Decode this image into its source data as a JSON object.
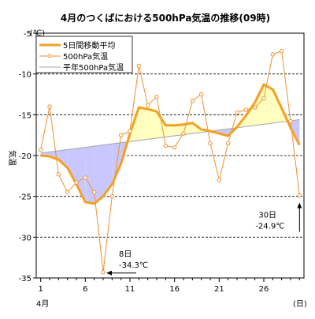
{
  "chart_data": {
    "type": "line",
    "title": "4月のつくばにおける500hPa気温の推移(09時)",
    "y_unit": "(℃)",
    "ylabel": "気温",
    "x_unit": "(日)",
    "x_month_label": "4月",
    "ylim": [
      -35,
      -5
    ],
    "xlim": [
      1,
      30
    ],
    "y_ticks": [
      -5,
      -10,
      -15,
      -20,
      -25,
      -30,
      -35
    ],
    "x_ticks": [
      1,
      6,
      11,
      16,
      21,
      26
    ],
    "grid": "horizontal-dashed",
    "legend_position": "top-left",
    "colors": {
      "moving_average": "#f5a020",
      "daily": "#f09030",
      "normal": "#a8a8a8",
      "above_fill": "#ffffc0",
      "below_fill": "#c8c8ff",
      "grid": "#000000"
    },
    "series": [
      {
        "key": "moving_average",
        "name": "5日間移動平均",
        "x": [
          1,
          2,
          3,
          4,
          5,
          6,
          7,
          8,
          9,
          10,
          11,
          12,
          13,
          14,
          15,
          16,
          17,
          18,
          19,
          20,
          21,
          22,
          23,
          24,
          25,
          26,
          27,
          28,
          29,
          30
        ],
        "values": [
          -20.0,
          -20.1,
          -20.5,
          -21.5,
          -23.5,
          -25.7,
          -25.9,
          -25.0,
          -23.5,
          -21.0,
          -17.3,
          -14.1,
          -14.3,
          -14.6,
          -16.3,
          -16.3,
          -16.2,
          -16.0,
          -16.8,
          -17.0,
          -17.3,
          -17.6,
          -16.5,
          -15.1,
          -13.5,
          -11.3,
          -11.9,
          -14.2,
          -16.6,
          -18.7
        ]
      },
      {
        "key": "daily",
        "name": "500hPa気温",
        "x": [
          1,
          2,
          3,
          4,
          5,
          6,
          7,
          8,
          9,
          10,
          11,
          12,
          13,
          14,
          15,
          16,
          17,
          18,
          19,
          20,
          21,
          22,
          23,
          24,
          25,
          26,
          27,
          28,
          29,
          30
        ],
        "values": [
          -19.3,
          -14.0,
          -22.3,
          -24.5,
          -23.3,
          -22.7,
          -24.5,
          -34.3,
          -25.0,
          -17.5,
          -17.0,
          -9.0,
          -13.8,
          -12.8,
          -18.8,
          -19.0,
          -17.3,
          -13.3,
          -12.5,
          -18.5,
          -23.0,
          -18.5,
          -14.7,
          -14.4,
          -14.1,
          -13.0,
          -7.6,
          -7.2,
          -15.8,
          -24.9
        ]
      },
      {
        "key": "normal",
        "name": "平年500hPa気温",
        "x": [
          1,
          30
        ],
        "values": [
          -19.7,
          -15.6
        ]
      }
    ],
    "annotations": [
      {
        "key": "min",
        "x": 8,
        "y": -34.3,
        "line1": "8日",
        "line2": "-34.3℃",
        "arrow": "left"
      },
      {
        "key": "last",
        "x": 30,
        "y": -24.9,
        "line1": "30日",
        "line2": "-24.9℃",
        "arrow": "up"
      }
    ]
  }
}
